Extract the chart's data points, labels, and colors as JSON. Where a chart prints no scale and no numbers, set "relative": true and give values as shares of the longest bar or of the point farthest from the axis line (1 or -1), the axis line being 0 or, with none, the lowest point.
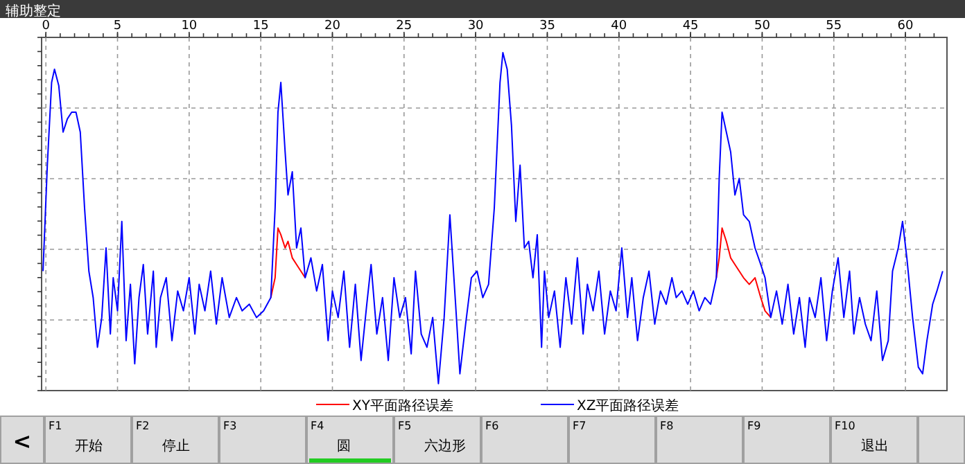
{
  "chart_data": {
    "type": "line",
    "title": "辅助整定",
    "relative": true,
    "xlim": [
      -0.3,
      62.9
    ],
    "xticks": [
      0,
      5,
      10,
      15,
      20,
      25,
      30,
      35,
      40,
      45,
      50,
      55,
      60
    ],
    "grid": true,
    "legend": "bottom",
    "marker": "none",
    "line_style": "solid",
    "x": [
      -0.2,
      0.1,
      0.4,
      0.6,
      0.9,
      1.2,
      1.5,
      1.8,
      2.1,
      2.4,
      2.7,
      3.0,
      3.3,
      3.6,
      3.9,
      4.2,
      4.5,
      4.7,
      5.0,
      5.3,
      5.6,
      5.9,
      6.2,
      6.5,
      6.8,
      7.1,
      7.5,
      7.7,
      8.0,
      8.4,
      8.8,
      9.2,
      9.6,
      10.0,
      10.4,
      10.7,
      11.1,
      11.5,
      11.9,
      12.3,
      12.8,
      13.3,
      13.7,
      14.2,
      14.7,
      15.2,
      15.7,
      16.0,
      16.2,
      16.4,
      16.7,
      16.9,
      17.2,
      17.5,
      17.8,
      18.1,
      18.5,
      18.9,
      19.3,
      19.7,
      20.0,
      20.4,
      20.8,
      21.2,
      21.6,
      22.0,
      22.4,
      22.7,
      23.1,
      23.5,
      23.9,
      24.3,
      24.7,
      25.1,
      25.5,
      25.8,
      26.2,
      26.6,
      27.0,
      27.4,
      27.8,
      28.2,
      28.6,
      28.9,
      29.3,
      29.7,
      30.1,
      30.5,
      30.9,
      31.3,
      31.7,
      31.9,
      32.2,
      32.5,
      32.8,
      33.1,
      33.4,
      33.7,
      34.0,
      34.3,
      34.6,
      34.8,
      35.1,
      35.5,
      35.9,
      36.3,
      36.7,
      37.1,
      37.5,
      37.8,
      38.2,
      38.6,
      39.0,
      39.4,
      39.8,
      40.2,
      40.6,
      40.9,
      41.3,
      41.7,
      42.1,
      42.5,
      42.9,
      43.3,
      43.7,
      44.0,
      44.4,
      44.8,
      45.2,
      45.6,
      46.0,
      46.4,
      46.8,
      47.0,
      47.2,
      47.5,
      47.8,
      48.1,
      48.4,
      48.7,
      49.1,
      49.5,
      49.9,
      50.2,
      50.6,
      51.0,
      51.4,
      51.8,
      52.2,
      52.6,
      53.0,
      53.3,
      53.7,
      54.1,
      54.5,
      54.9,
      55.3,
      55.7,
      56.1,
      56.4,
      56.8,
      57.2,
      57.6,
      58.0,
      58.4,
      58.8,
      59.1,
      59.5,
      59.8,
      60.1,
      60.5,
      60.9,
      61.2,
      61.5,
      61.9,
      62.2,
      62.6
    ],
    "series": [
      {
        "name": "XY平面路径误差",
        "color": "#ff0000",
        "values": [
          null,
          null,
          null,
          null,
          null,
          null,
          null,
          null,
          null,
          null,
          null,
          null,
          null,
          null,
          null,
          null,
          null,
          null,
          null,
          null,
          null,
          null,
          null,
          null,
          null,
          null,
          null,
          null,
          null,
          null,
          null,
          null,
          null,
          null,
          null,
          null,
          null,
          null,
          null,
          null,
          null,
          null,
          null,
          null,
          null,
          null,
          0.26,
          0.32,
          0.47,
          0.45,
          0.41,
          0.43,
          0.38,
          0.36,
          0.34,
          0.32,
          null,
          null,
          null,
          null,
          null,
          null,
          null,
          null,
          null,
          null,
          null,
          null,
          null,
          null,
          null,
          null,
          null,
          null,
          null,
          null,
          null,
          null,
          null,
          null,
          null,
          null,
          null,
          null,
          null,
          null,
          null,
          null,
          null,
          null,
          null,
          null,
          null,
          null,
          null,
          null,
          null,
          null,
          null,
          null,
          null,
          null,
          null,
          null,
          null,
          null,
          null,
          null,
          null,
          null,
          null,
          null,
          null,
          null,
          null,
          null,
          null,
          null,
          null,
          null,
          null,
          null,
          null,
          null,
          null,
          null,
          null,
          null,
          null,
          null,
          null,
          null,
          0.32,
          0.38,
          0.47,
          0.43,
          0.38,
          0.36,
          0.34,
          0.32,
          0.3,
          0.32,
          0.26,
          0.22,
          0.2,
          null,
          null,
          null,
          null,
          null,
          null,
          null,
          null,
          null,
          null,
          null,
          null,
          null,
          null,
          null,
          null,
          null,
          null,
          null,
          null,
          null,
          null,
          null,
          null,
          null,
          null,
          null,
          null,
          null,
          null,
          null,
          null
        ]
      },
      {
        "name": "XZ平面路径误差",
        "color": "#0000ff",
        "values": [
          0.34,
          0.66,
          0.91,
          0.95,
          0.9,
          0.76,
          0.8,
          0.82,
          0.82,
          0.76,
          0.53,
          0.34,
          0.26,
          0.11,
          0.2,
          0.41,
          0.15,
          0.32,
          0.22,
          0.49,
          0.13,
          0.3,
          0.06,
          0.26,
          0.36,
          0.15,
          0.34,
          0.11,
          0.26,
          0.32,
          0.13,
          0.28,
          0.22,
          0.32,
          0.15,
          0.3,
          0.22,
          0.34,
          0.18,
          0.32,
          0.2,
          0.26,
          0.22,
          0.24,
          0.2,
          0.22,
          0.26,
          0.53,
          0.82,
          0.91,
          0.7,
          0.57,
          0.64,
          0.41,
          0.47,
          0.32,
          0.38,
          0.28,
          0.36,
          0.13,
          0.28,
          0.2,
          0.34,
          0.11,
          0.3,
          0.07,
          0.24,
          0.36,
          0.15,
          0.26,
          0.07,
          0.32,
          0.2,
          0.26,
          0.09,
          0.34,
          0.15,
          0.11,
          0.2,
          0.0,
          0.2,
          0.51,
          0.24,
          0.03,
          0.18,
          0.32,
          0.34,
          0.26,
          0.3,
          0.53,
          0.91,
          1.0,
          0.95,
          0.78,
          0.49,
          0.66,
          0.41,
          0.43,
          0.32,
          0.45,
          0.11,
          0.34,
          0.2,
          0.28,
          0.11,
          0.32,
          0.18,
          0.38,
          0.15,
          0.3,
          0.22,
          0.34,
          0.15,
          0.28,
          0.22,
          0.41,
          0.2,
          0.32,
          0.13,
          0.26,
          0.34,
          0.18,
          0.28,
          0.24,
          0.32,
          0.26,
          0.28,
          0.24,
          0.28,
          0.22,
          0.26,
          0.24,
          0.32,
          0.62,
          0.82,
          0.76,
          0.7,
          0.57,
          0.62,
          0.51,
          0.49,
          0.41,
          0.36,
          0.32,
          0.2,
          0.28,
          0.18,
          0.3,
          0.15,
          0.26,
          0.11,
          0.26,
          0.2,
          0.32,
          0.13,
          0.28,
          0.38,
          0.2,
          0.34,
          0.15,
          0.26,
          0.18,
          0.13,
          0.28,
          0.07,
          0.13,
          0.34,
          0.41,
          0.49,
          0.38,
          0.2,
          0.05,
          0.03,
          0.13,
          0.24,
          0.28,
          0.34
        ]
      }
    ],
    "annotations": [
      "<",
      "F1\n开始",
      "F2\n停止",
      "F3",
      "F4\n圆",
      "F5\n六边形",
      "F6",
      "F7",
      "F8",
      "F9",
      "F10\n退出"
    ]
  }
}
